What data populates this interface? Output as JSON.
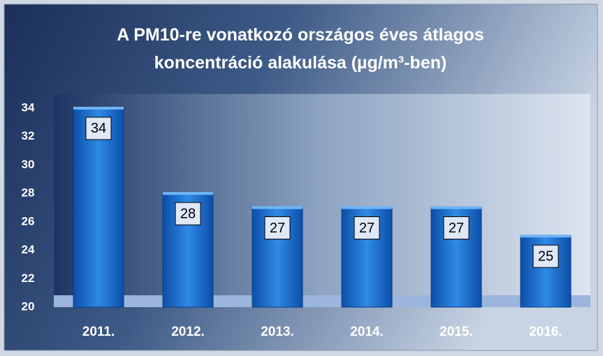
{
  "chart_data": {
    "type": "bar",
    "title": "A PM10-re vonatkozó országos éves átlagos koncentráció alakulása (µg/m³-ben)",
    "categories": [
      "2011.",
      "2012.",
      "2013.",
      "2014.",
      "2015.",
      "2016."
    ],
    "values": [
      34,
      28,
      27,
      27,
      27,
      25
    ],
    "color": "#1a6fd0",
    "ylim": [
      20,
      35
    ],
    "yticks": [
      20,
      22,
      24,
      26,
      28,
      30,
      32,
      34
    ],
    "grid": false
  }
}
